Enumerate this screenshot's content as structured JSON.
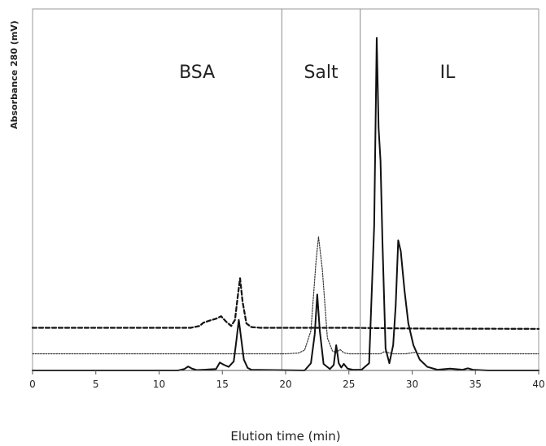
{
  "chart_data": {
    "type": "line",
    "title": "",
    "xlabel": "Elution time (min)",
    "ylabel": "Absorbance 280 (mV)",
    "xlim": [
      0,
      40
    ],
    "ylim": [
      0,
      100
    ],
    "x_ticks": [
      "0",
      "5",
      "10",
      "15",
      "20",
      "25",
      "30",
      "35",
      "40"
    ],
    "y_ticks_visible": false,
    "grid": false,
    "legend": "none",
    "regions": [
      {
        "label": "BSA",
        "x_start": 0,
        "x_end": 19.7
      },
      {
        "label": "Salt",
        "x_start": 19.7,
        "x_end": 25.9
      },
      {
        "label": "IL",
        "x_start": 25.9,
        "x_end": 40
      }
    ],
    "dividers_x": [
      19.7,
      25.9
    ],
    "series": [
      {
        "style": "dashed",
        "color": "#111111",
        "x": [
          0,
          12.5,
          13.2,
          13.5,
          14.0,
          14.5,
          14.9,
          15.3,
          15.7,
          16.0,
          16.2,
          16.4,
          16.6,
          16.9,
          17.3,
          18,
          25,
          30,
          40
        ],
        "y": [
          11.8,
          11.8,
          12.3,
          13.2,
          13.8,
          14.3,
          15.0,
          13.5,
          12.3,
          14.0,
          20.0,
          25.5,
          19.0,
          13.0,
          12.0,
          11.8,
          11.8,
          11.6,
          11.5
        ]
      },
      {
        "style": "dotted",
        "color": "#333333",
        "x": [
          0,
          20,
          21.0,
          21.5,
          22.0,
          22.4,
          22.6,
          22.9,
          23.3,
          23.7,
          24.0,
          24.3,
          24.6,
          25.0,
          26,
          27.5,
          27.8,
          28.5,
          29.5,
          30.2,
          30.6,
          31,
          40
        ],
        "y": [
          4.6,
          4.6,
          4.8,
          5.6,
          11.0,
          30.0,
          37.0,
          28.0,
          9.0,
          5.4,
          4.9,
          5.8,
          4.9,
          4.6,
          4.6,
          4.6,
          5.2,
          4.6,
          4.6,
          5.0,
          4.6,
          4.6,
          4.6
        ]
      },
      {
        "style": "solid",
        "color": "#111111",
        "x": [
          0,
          11.5,
          12.0,
          12.3,
          12.6,
          13.0,
          14.5,
          14.8,
          15.1,
          15.5,
          15.9,
          16.1,
          16.3,
          16.5,
          16.7,
          17.0,
          17.3,
          21.5,
          22.0,
          22.3,
          22.5,
          22.7,
          23.0,
          23.5,
          23.8,
          24.0,
          24.2,
          24.4,
          24.6,
          24.9,
          25.3,
          26.0,
          26.6,
          27.0,
          27.2,
          27.35,
          27.5,
          27.65,
          27.9,
          28.2,
          28.5,
          28.7,
          28.9,
          29.1,
          29.4,
          29.7,
          30.1,
          30.6,
          31.2,
          32,
          33,
          34,
          34.4,
          34.8,
          36,
          40
        ],
        "y": [
          0,
          0,
          0.4,
          1.1,
          0.5,
          0.1,
          0.4,
          2.2,
          1.6,
          1.0,
          2.5,
          8.0,
          14.0,
          8.5,
          3.0,
          0.7,
          0.2,
          0,
          2.0,
          10.0,
          21.0,
          11.0,
          1.8,
          0.4,
          1.5,
          7.0,
          2.0,
          0.8,
          1.8,
          0.5,
          0.2,
          0.2,
          2.0,
          40.0,
          92.0,
          67.0,
          58.0,
          36.0,
          6.0,
          2.0,
          7.0,
          18.0,
          36.0,
          33.0,
          22.0,
          13.0,
          7.0,
          3.0,
          1.0,
          0.2,
          0.5,
          0.2,
          0.6,
          0.2,
          0,
          0
        ]
      }
    ]
  }
}
